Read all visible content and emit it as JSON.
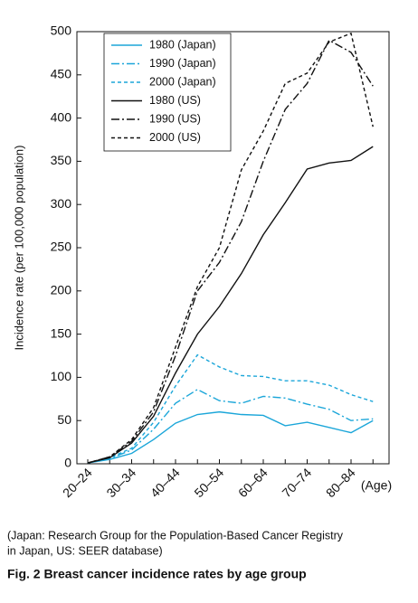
{
  "chart_data": {
    "type": "line",
    "y_label": "Incidence rate (per 100,000 population)",
    "x_label": "(Age)",
    "categories": [
      "20–24",
      null,
      "30–34",
      null,
      "40–44",
      null,
      "50–54",
      null,
      "60–64",
      null,
      "70–74",
      null,
      "80–84",
      null
    ],
    "series": [
      {
        "name": "1980 (Japan)",
        "color": "#1ba6d9",
        "dash": "solid",
        "values": [
          1,
          5,
          12,
          28,
          47,
          57,
          60,
          57,
          56,
          44,
          48,
          42,
          36,
          50
        ]
      },
      {
        "name": "1990 (Japan)",
        "color": "#1ba6d9",
        "dash": "dashdot",
        "values": [
          1,
          6,
          16,
          40,
          70,
          86,
          73,
          70,
          78,
          76,
          69,
          63,
          50,
          52
        ]
      },
      {
        "name": "2000 (Japan)",
        "color": "#1ba6d9",
        "dash": "dashed",
        "values": [
          1,
          7,
          18,
          48,
          90,
          126,
          112,
          102,
          101,
          96,
          96,
          91,
          80,
          72
        ]
      },
      {
        "name": "1980 (US)",
        "color": "#111111",
        "dash": "solid",
        "values": [
          1,
          7,
          24,
          55,
          105,
          150,
          182,
          220,
          265,
          302,
          341,
          348,
          351,
          367
        ]
      },
      {
        "name": "1990 (US)",
        "color": "#111111",
        "dash": "dashdot",
        "values": [
          1,
          8,
          26,
          60,
          125,
          200,
          233,
          280,
          350,
          410,
          440,
          490,
          476,
          437
        ]
      },
      {
        "name": "2000 (US)",
        "color": "#111111",
        "dash": "dashed",
        "values": [
          1,
          8,
          28,
          65,
          135,
          205,
          250,
          340,
          385,
          440,
          452,
          488,
          498,
          390
        ]
      }
    ],
    "ylim": [
      0,
      500
    ],
    "yticks": [
      0,
      50,
      100,
      150,
      200,
      250,
      300,
      350,
      400,
      450,
      500
    ],
    "legend": "upper left",
    "caption": [
      "(Japan: Research Group for the Population-Based Cancer Registry",
      "in Japan, US: SEER database)"
    ],
    "figure_title": "Fig. 2  Breast cancer incidence rates by age group"
  }
}
